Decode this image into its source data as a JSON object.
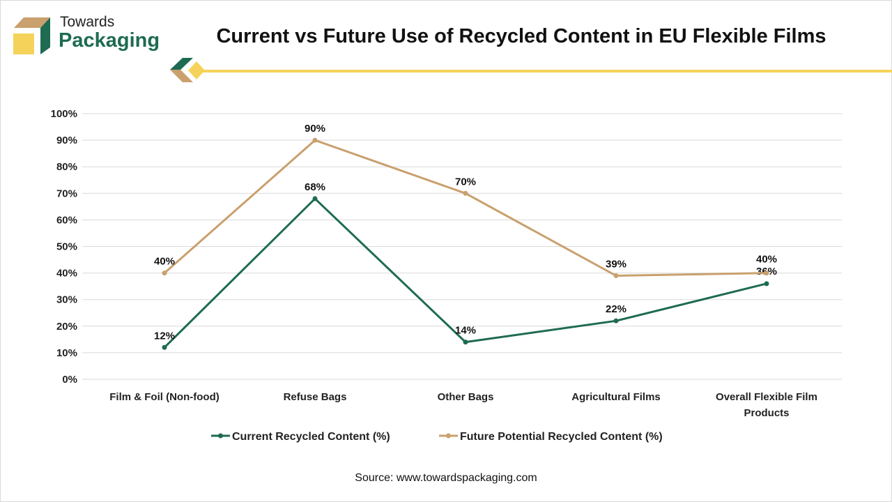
{
  "logo": {
    "line1": "Towards",
    "line2": "Packaging"
  },
  "colors": {
    "current": "#1e6b52",
    "future": "#c9a06e",
    "accent": "#f5d35a",
    "grid": "#d9d9d9"
  },
  "source": "Source: www.towardspackaging.com",
  "chart_data": {
    "type": "line",
    "title": "Current vs Future Use of Recycled Content in EU Flexible Films",
    "categories": [
      "Film & Foil (Non-food)",
      "Refuse Bags",
      "Other Bags",
      "Agricultural Films",
      "Overall Flexible Film Products"
    ],
    "category_lines": [
      [
        "Film & Foil (Non-food)"
      ],
      [
        "Refuse Bags"
      ],
      [
        "Other Bags"
      ],
      [
        "Agricultural Films"
      ],
      [
        "Overall Flexible Film",
        "Products"
      ]
    ],
    "series": [
      {
        "name": "Current Recycled Content (%)",
        "values": [
          12,
          68,
          14,
          22,
          36
        ],
        "labels": [
          "12%",
          "68%",
          "14%",
          "22%",
          "36%"
        ]
      },
      {
        "name": "Future Potential Recycled Content (%)",
        "values": [
          40,
          90,
          70,
          39,
          40
        ],
        "labels": [
          "40%",
          "90%",
          "70%",
          "39%",
          "40%"
        ]
      }
    ],
    "ylim": [
      0,
      100
    ],
    "yticks": [
      "0%",
      "10%",
      "20%",
      "30%",
      "40%",
      "50%",
      "60%",
      "70%",
      "80%",
      "90%",
      "100%"
    ],
    "grid": true,
    "legend": "bottom"
  }
}
